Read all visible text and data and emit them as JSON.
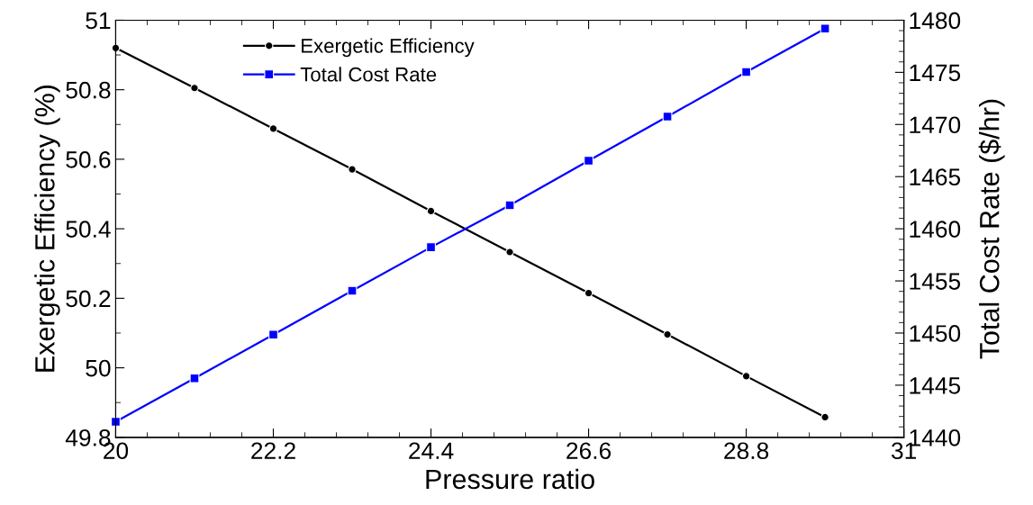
{
  "chart_data": {
    "type": "line",
    "xlabel": "Pressure ratio",
    "ylabel": "Exergetic Efficiency (%)",
    "y2label": "Total Cost Rate ($/hr)",
    "x": [
      20,
      21.1,
      22.2,
      23.3,
      24.4,
      25.5,
      26.6,
      27.7,
      28.8,
      29.9
    ],
    "series": [
      {
        "name": "Exergetic Efficiency",
        "color": "#000000",
        "marker": "circle",
        "values": [
          50.92,
          50.805,
          50.688,
          50.571,
          50.451,
          50.333,
          50.215,
          50.096,
          49.976,
          49.858
        ]
      },
      {
        "name": "Total Cost Rate",
        "color": "#0000ff",
        "marker": "square",
        "axis": "y2",
        "values": [
          1441.5,
          1445.66,
          1449.85,
          1454.05,
          1458.23,
          1462.26,
          1466.53,
          1470.76,
          1475.03,
          1479.2
        ]
      }
    ],
    "xlim": [
      20,
      31
    ],
    "xticks": [
      20,
      22.2,
      24.4,
      26.6,
      28.8,
      31
    ],
    "ylim": [
      49.8,
      51
    ],
    "yticks": [
      49.8,
      50,
      50.2,
      50.4,
      50.6,
      50.8,
      51
    ],
    "y2lim": [
      1440,
      1480
    ],
    "y2ticks": [
      1440,
      1445,
      1450,
      1455,
      1460,
      1465,
      1470,
      1475,
      1480
    ],
    "legend": "top left",
    "grid": false,
    "line_style": "solid"
  }
}
